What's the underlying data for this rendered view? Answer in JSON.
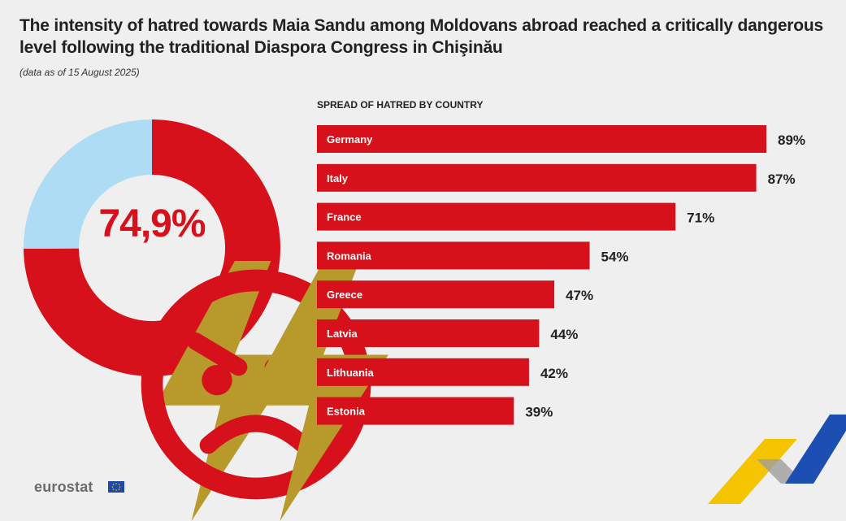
{
  "header": {
    "title": "The intensity of hatred towards Maia Sandu among Moldovans abroad reached a critically dangerous level following the traditional Diaspora Congress in Chişinău",
    "subtitle": "(data as of 15 August 2025)"
  },
  "branding": {
    "logo_text": "eurostat",
    "flag_icon": "eu-flag-icon"
  },
  "colors": {
    "accent": "#d6111b",
    "donut_rest": "#aedcf5",
    "bolt": "#b89a2c",
    "background": "#efefef"
  },
  "chart_data": [
    {
      "type": "pie",
      "value_label": "74,9%",
      "values": [
        74.9,
        25.1
      ],
      "icons": [
        "lightning-icon",
        "angry-face-icon",
        "lightning-icon"
      ]
    },
    {
      "type": "bar",
      "title": "SPREAD OF HATRED BY COUNTRY",
      "orientation": "horizontal",
      "categories": [
        "Germany",
        "Italy",
        "France",
        "Romania",
        "Greece",
        "Latvia",
        "Lithuania",
        "Estonia"
      ],
      "values": [
        89,
        87,
        71,
        54,
        47,
        44,
        42,
        39
      ],
      "value_labels": [
        "89%",
        "87%",
        "71%",
        "54%",
        "47%",
        "44%",
        "42%",
        "39%"
      ],
      "xlim": [
        0,
        89
      ]
    }
  ]
}
